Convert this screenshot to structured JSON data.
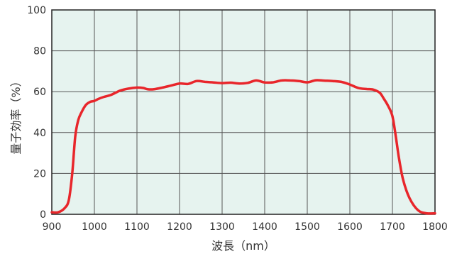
{
  "chart_data": {
    "type": "line",
    "title": "",
    "xlabel": "波長（nm）",
    "ylabel": "量子効率（%）",
    "xlim": [
      900,
      1800
    ],
    "ylim": [
      0,
      100
    ],
    "x_ticks": [
      900,
      1000,
      1100,
      1200,
      1300,
      1400,
      1500,
      1600,
      1700,
      1800
    ],
    "y_ticks": [
      0,
      20,
      40,
      60,
      80,
      100
    ],
    "grid": true,
    "legend": "none",
    "colors": {
      "plot_background": "#e6f3ef",
      "grid": "#555555",
      "line": "#e8262b"
    },
    "series": [
      {
        "name": "",
        "x": [
          900,
          915,
          930,
          940,
          948,
          955,
          962,
          970,
          980,
          990,
          1000,
          1010,
          1020,
          1040,
          1060,
          1080,
          1100,
          1115,
          1125,
          1140,
          1160,
          1180,
          1200,
          1220,
          1240,
          1260,
          1280,
          1300,
          1320,
          1340,
          1360,
          1380,
          1400,
          1420,
          1440,
          1460,
          1480,
          1500,
          1520,
          1540,
          1560,
          1580,
          1600,
          1620,
          1640,
          1655,
          1670,
          1680,
          1690,
          1700,
          1708,
          1715,
          1725,
          1740,
          1760,
          1780,
          1800
        ],
        "y": [
          1,
          1,
          3,
          7,
          20,
          38,
          46,
          50,
          53.5,
          55,
          55.5,
          56.5,
          57.3,
          58.5,
          60.5,
          61.5,
          62,
          61.8,
          61.2,
          61.2,
          62,
          63,
          64,
          63.8,
          65.2,
          64.8,
          64.5,
          64.2,
          64.4,
          64,
          64.3,
          65.5,
          64.5,
          64.6,
          65.5,
          65.5,
          65.2,
          64.6,
          65.6,
          65.4,
          65.2,
          64.8,
          63.5,
          61.8,
          61.3,
          61,
          59.5,
          56.5,
          53,
          48,
          38,
          28,
          17,
          8,
          2,
          0.5,
          0.5
        ]
      }
    ]
  }
}
